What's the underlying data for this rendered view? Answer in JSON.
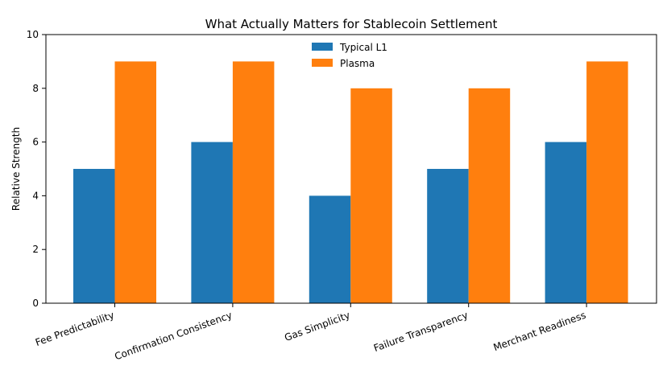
{
  "chart_data": {
    "type": "bar",
    "title": "What Actually Matters for Stablecoin Settlement",
    "xlabel": "",
    "ylabel": "Relative Strength",
    "categories": [
      "Fee Predictability",
      "Confirmation Consistency",
      "Gas Simplicity",
      "Failure Transparency",
      "Merchant Readiness"
    ],
    "series": [
      {
        "name": "Typical L1",
        "values": [
          5,
          6,
          4,
          5,
          6
        ],
        "color": "#1f77b4"
      },
      {
        "name": "Plasma",
        "values": [
          9,
          9,
          8,
          8,
          9
        ],
        "color": "#ff7f0e"
      }
    ],
    "ylim": [
      0,
      10
    ],
    "yticks": [
      "0",
      "2",
      "4",
      "6",
      "8",
      "10"
    ],
    "grid": false,
    "legend_position": "top-center"
  }
}
